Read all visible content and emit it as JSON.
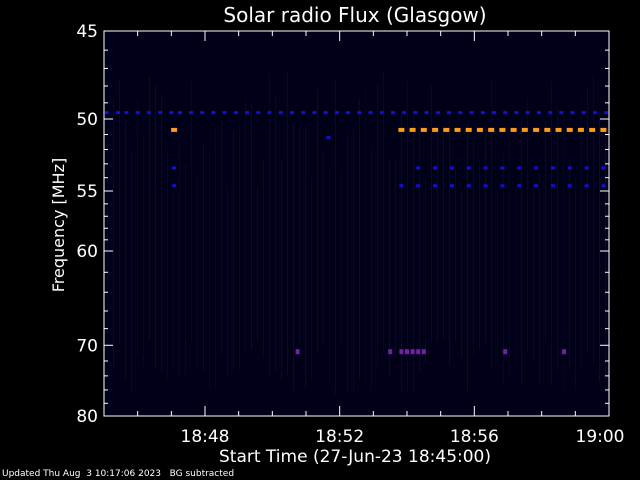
{
  "chart_data": {
    "type": "heatmap",
    "title": "Solar radio Flux (Glasgow)",
    "ylabel": "Frequency [MHz]",
    "xlabel": "Start Time (27-Jun-23 18:45:00)",
    "y_axis": {
      "range": [
        45,
        80
      ],
      "inverted": true,
      "scale": "reciprocal",
      "tick_labels": [
        45,
        50,
        55,
        60,
        70,
        80
      ]
    },
    "x_axis": {
      "range": [
        "18:45",
        "19:00"
      ],
      "tick_labels": [
        "18:48",
        "18:52",
        "18:56",
        "19:00"
      ]
    },
    "colors": {
      "background": "#000000",
      "plot_bg": "#000018",
      "axes": "#ffffff",
      "dim": "#0c0c50",
      "medium": "#1010d8",
      "bright": "#ff9a1a",
      "spike": "#7a1ab0"
    },
    "bands": [
      {
        "freq": 49.6,
        "level": "medium",
        "times": [
          "18:45:05",
          "18:45:25",
          "18:45:40",
          "18:46:00",
          "18:46:20",
          "18:46:40",
          "18:47:00",
          "18:47:15",
          "18:47:35",
          "18:47:55",
          "18:48:15",
          "18:48:35",
          "18:48:55",
          "18:49:15",
          "18:49:35",
          "18:49:55",
          "18:50:15",
          "18:50:35",
          "18:50:55",
          "18:51:15",
          "18:51:35",
          "18:51:55",
          "18:52:15",
          "18:52:35",
          "18:52:55",
          "18:53:15",
          "18:53:35",
          "18:53:55",
          "18:54:15",
          "18:54:35",
          "18:54:55",
          "18:55:15",
          "18:55:35",
          "18:55:55",
          "18:56:15",
          "18:56:35",
          "18:56:55",
          "18:57:15",
          "18:57:35",
          "18:57:55",
          "18:58:15",
          "18:58:35",
          "18:58:55",
          "18:59:15",
          "18:59:35",
          "18:59:55"
        ]
      },
      {
        "freq": 50.7,
        "level": "bright",
        "times": [
          "18:47:05",
          "18:53:50",
          "18:54:10",
          "18:54:30",
          "18:54:50",
          "18:55:10",
          "18:55:30",
          "18:55:50",
          "18:56:10",
          "18:56:30",
          "18:56:50",
          "18:57:10",
          "18:57:30",
          "18:57:50",
          "18:58:10",
          "18:58:30",
          "18:58:50",
          "18:59:10",
          "18:59:30",
          "18:59:50"
        ]
      },
      {
        "freq": 51.2,
        "level": "medium",
        "times": [
          "18:51:40"
        ]
      },
      {
        "freq": 53.3,
        "level": "medium",
        "times": [
          "18:47:05",
          "18:54:20",
          "18:54:50",
          "18:55:20",
          "18:55:50",
          "18:56:20",
          "18:56:50",
          "18:57:20",
          "18:57:50",
          "18:58:20",
          "18:58:50",
          "18:59:20",
          "18:59:50"
        ]
      },
      {
        "freq": 54.6,
        "level": "medium",
        "times": [
          "18:47:05",
          "18:53:50",
          "18:54:20",
          "18:54:50",
          "18:55:20",
          "18:55:50",
          "18:56:20",
          "18:56:50",
          "18:57:20",
          "18:57:50",
          "18:58:20",
          "18:58:50",
          "18:59:20",
          "18:59:50"
        ]
      },
      {
        "freq": 70.8,
        "level": "spike",
        "times": [
          "18:50:45",
          "18:53:30",
          "18:53:50",
          "18:54:00",
          "18:54:10",
          "18:54:20",
          "18:54:30",
          "18:56:55",
          "18:58:40"
        ]
      }
    ]
  },
  "footer": {
    "updated": "Updated Thu Aug  3 10:17:06 2023",
    "note": "BG subtracted"
  }
}
